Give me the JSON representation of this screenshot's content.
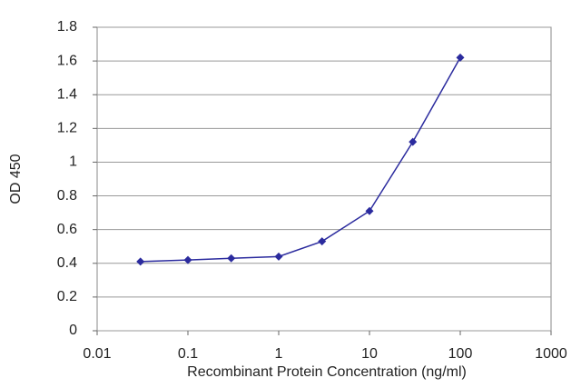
{
  "chart_data": {
    "type": "line",
    "xlabel": "Recombinant Protein Concentration (ng/ml)",
    "ylabel": "OD 450",
    "x": [
      0.03,
      0.1,
      0.3,
      1,
      3,
      10,
      30,
      100
    ],
    "series": [
      {
        "color": "#2b2b9e",
        "values": [
          0.41,
          0.42,
          0.43,
          0.44,
          0.53,
          0.71,
          1.12,
          1.62
        ]
      }
    ],
    "xlim": [
      0.01,
      1000
    ],
    "xticks": [
      0.01,
      0.1,
      1,
      10,
      100,
      1000
    ],
    "xscale": "log",
    "ylim": [
      0,
      1.8
    ],
    "yticks": [
      0,
      0.2,
      0.4,
      0.6,
      0.8,
      1,
      1.2,
      1.4,
      1.6,
      1.8
    ],
    "grid": true
  }
}
